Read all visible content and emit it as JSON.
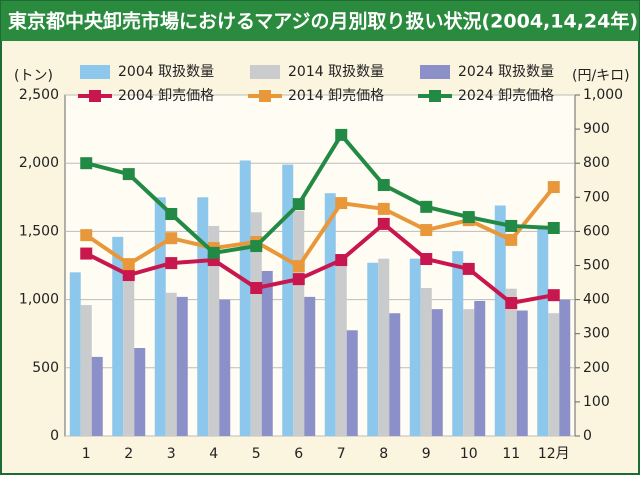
{
  "chart_data": {
    "type": "bar-line",
    "title": "東京都中央卸売市場におけるマアジの月別取り扱い状況(2004,14,24年)",
    "y_label": "(トン)",
    "y2_label": "(円/キロ)",
    "categories": [
      "1",
      "2",
      "3",
      "4",
      "5",
      "6",
      "7",
      "8",
      "9",
      "10",
      "11",
      "12月"
    ],
    "ylim": [
      0,
      2500
    ],
    "yticks": [
      0,
      500,
      {
        "value": 1000,
        "label": "1,000"
      },
      {
        "value": 1500,
        "label": "1,500"
      },
      {
        "value": 2000,
        "label": "2,000"
      },
      {
        "value": 2500,
        "label": "2,500"
      }
    ],
    "y2lim": [
      0,
      1000
    ],
    "y2ticks": [
      0,
      100,
      200,
      300,
      400,
      500,
      600,
      700,
      800,
      900,
      {
        "value": 1000,
        "label": "1,000"
      }
    ],
    "grid": true,
    "series": [
      {
        "name": "2004 取扱数量",
        "kind": "bar",
        "color": "#8ec7ec",
        "values": [
          1200,
          1460,
          1750,
          1750,
          2020,
          1990,
          1780,
          1270,
          1300,
          1355,
          1690,
          1520
        ]
      },
      {
        "name": "2014 取扱数量",
        "kind": "bar",
        "color": "#c9cbcc",
        "values": [
          960,
          1150,
          1050,
          1540,
          1640,
          1650,
          1300,
          1300,
          1085,
          930,
          1080,
          900
        ]
      },
      {
        "name": "2024 取扱数量",
        "kind": "bar",
        "color": "#8c90c8",
        "values": [
          580,
          645,
          1020,
          1000,
          1210,
          1020,
          775,
          900,
          930,
          990,
          920,
          1000
        ]
      },
      {
        "name": "2004 卸売価格",
        "kind": "line",
        "axis": "y2",
        "color": "#c8174e",
        "values": [
          535,
          472,
          507,
          516,
          434,
          460,
          516,
          622,
          519,
          490,
          390,
          413
        ]
      },
      {
        "name": "2014 卸売価格",
        "kind": "line",
        "axis": "y2",
        "color": "#e8983a",
        "values": [
          589,
          504,
          580,
          551,
          569,
          498,
          683,
          666,
          604,
          633,
          575,
          730
        ]
      },
      {
        "name": "2024 卸売価格",
        "kind": "line",
        "axis": "y2",
        "color": "#238a45",
        "values": [
          800,
          768,
          651,
          537,
          557,
          680,
          883,
          736,
          672,
          642,
          616,
          610
        ]
      }
    ]
  }
}
